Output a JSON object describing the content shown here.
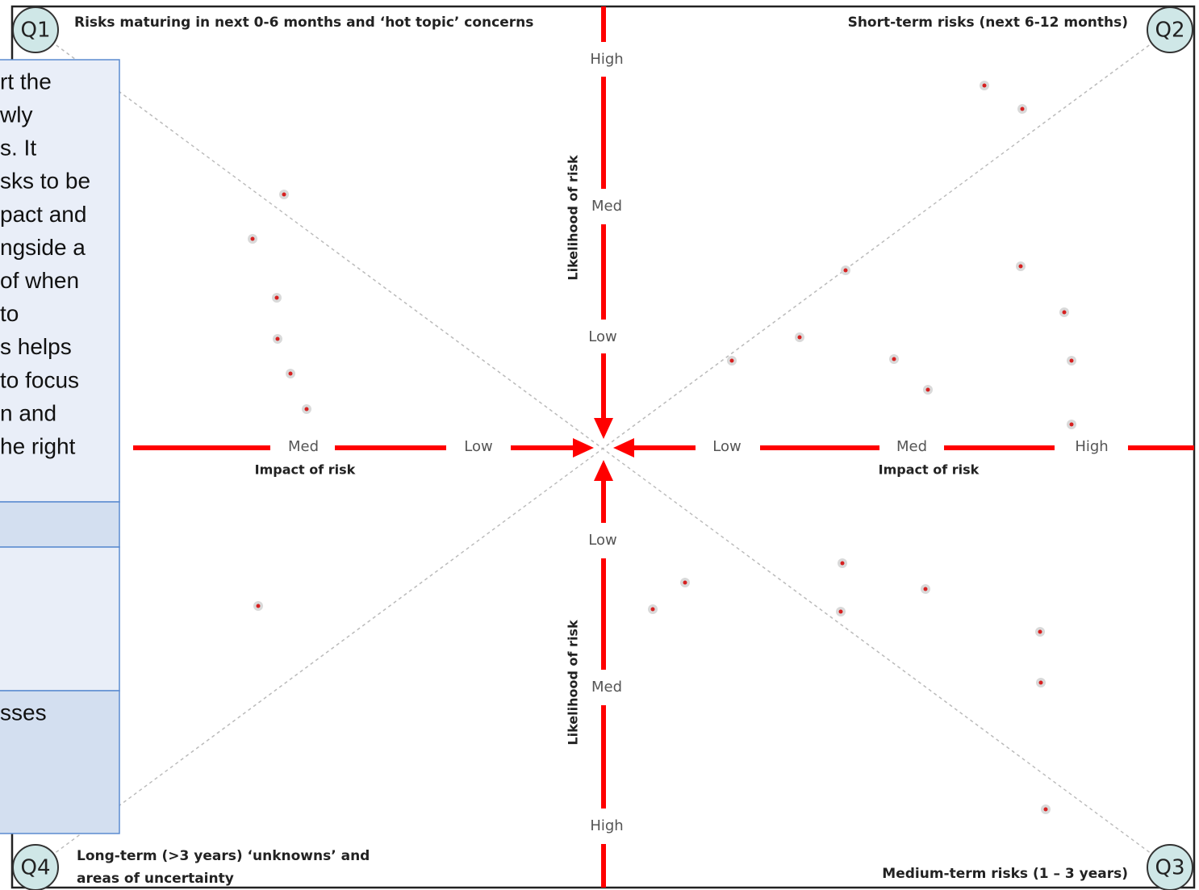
{
  "quadrants": [
    {
      "id": "Q1",
      "label": [
        "Risks maturing in next 0-6 months and ‘hot topic’ concerns"
      ]
    },
    {
      "id": "Q2",
      "label": [
        "Short-term risks (next 6-12 months)"
      ]
    },
    {
      "id": "Q3",
      "label": [
        "Medium-term risks (1 – 3 years)"
      ]
    },
    {
      "id": "Q4",
      "label": [
        "Long-term (>3 years) ‘unknowns’ and",
        "areas of uncertainty"
      ]
    }
  ],
  "likelihood_axis": {
    "title": "Likelihood of risk",
    "top_levels": [
      "High",
      "Med",
      "Low"
    ],
    "bottom_levels": [
      "Low",
      "Med",
      "High"
    ]
  },
  "impact_axis": {
    "title": "Impact of risk",
    "left_levels": [
      "Med",
      "Low"
    ],
    "right_levels": [
      "Low",
      "Med",
      "High"
    ]
  },
  "side_panel": {
    "lines": [
      "rt the",
      "wly",
      "s. It",
      "sks to be",
      "pact and",
      "ngside a",
      "of when",
      "to",
      "s helps",
      "to focus",
      "n and",
      "he right"
    ],
    "lower_text": "sses"
  }
}
